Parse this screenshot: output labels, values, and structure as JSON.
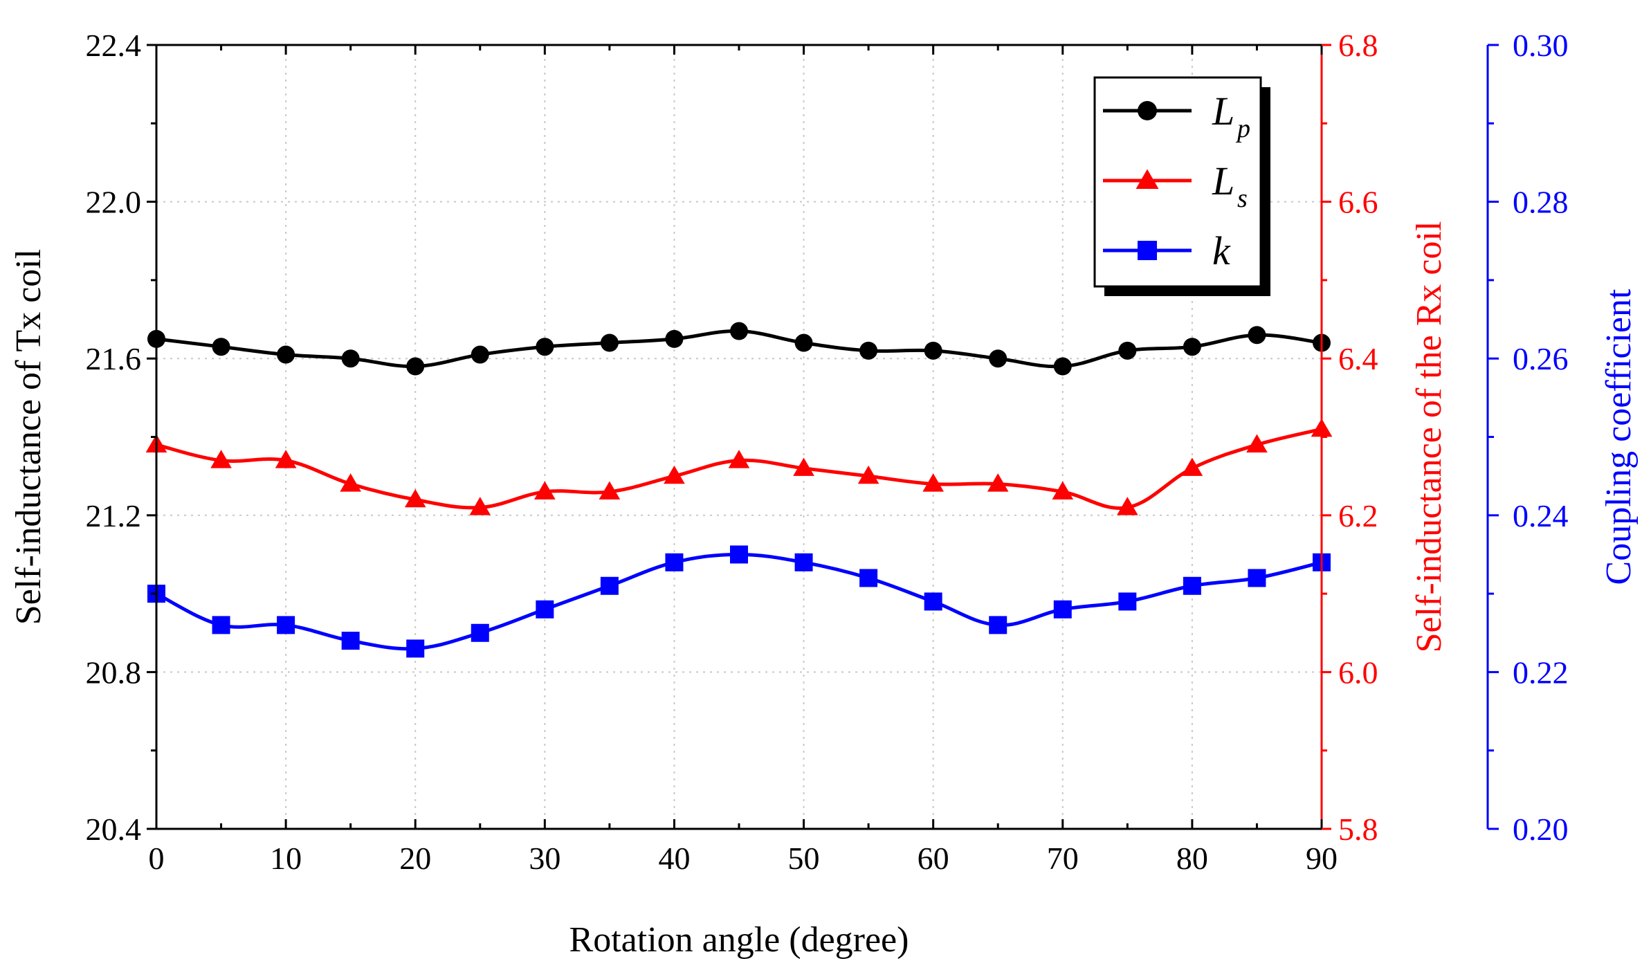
{
  "chart_data": {
    "type": "line",
    "xlabel": "Rotation angle (degree)",
    "x": [
      0,
      5,
      10,
      15,
      20,
      25,
      30,
      35,
      40,
      45,
      50,
      55,
      60,
      65,
      70,
      75,
      80,
      85,
      90
    ],
    "x_ticks": [
      "0",
      "10",
      "20",
      "30",
      "40",
      "50",
      "60",
      "70",
      "80",
      "90"
    ],
    "xlim": [
      0,
      90
    ],
    "axes": [
      {
        "id": "left",
        "label": "Self-inductance of Tx coil",
        "color": "#000000",
        "ylim": [
          20.4,
          22.4
        ],
        "ticks": [
          "20.4",
          "20.8",
          "21.2",
          "21.6",
          "22.0",
          "22.4"
        ]
      },
      {
        "id": "right1",
        "label": "Self-inductance of the Rx coil",
        "color": "#ff0000",
        "ylim": [
          5.8,
          6.8
        ],
        "ticks": [
          "5.8",
          "6.0",
          "6.2",
          "6.4",
          "6.6",
          "6.8"
        ]
      },
      {
        "id": "right2",
        "label": "Coupling coefficient",
        "color": "#0000ff",
        "ylim": [
          0.2,
          0.3
        ],
        "ticks": [
          "0.20",
          "0.22",
          "0.24",
          "0.26",
          "0.28",
          "0.30"
        ]
      }
    ],
    "series": [
      {
        "name": "L_p",
        "legend_main": "L",
        "legend_sub": "p",
        "axis": "left",
        "color": "#000000",
        "marker": "circle",
        "values": [
          21.65,
          21.63,
          21.61,
          21.6,
          21.58,
          21.61,
          21.63,
          21.64,
          21.65,
          21.67,
          21.64,
          21.62,
          21.62,
          21.6,
          21.58,
          21.62,
          21.63,
          21.66,
          21.64
        ]
      },
      {
        "name": "L_s",
        "legend_main": "L",
        "legend_sub": "s",
        "axis": "right1",
        "color": "#ff0000",
        "marker": "triangle",
        "values": [
          6.29,
          6.27,
          6.27,
          6.24,
          6.22,
          6.21,
          6.23,
          6.23,
          6.25,
          6.27,
          6.26,
          6.25,
          6.24,
          6.24,
          6.23,
          6.21,
          6.26,
          6.29,
          6.31
        ]
      },
      {
        "name": "k",
        "legend_main": "k",
        "legend_sub": "",
        "axis": "right2",
        "color": "#0000ff",
        "marker": "square",
        "values": [
          0.23,
          0.226,
          0.226,
          0.224,
          0.223,
          0.225,
          0.228,
          0.231,
          0.234,
          0.235,
          0.234,
          0.232,
          0.229,
          0.226,
          0.228,
          0.229,
          0.231,
          0.232,
          0.234
        ]
      }
    ],
    "grid": true,
    "legend_position": "top-right"
  }
}
